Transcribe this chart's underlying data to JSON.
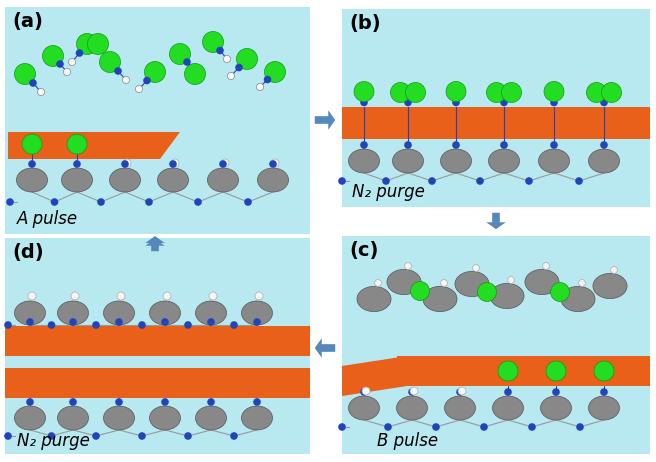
{
  "bg": "#ffffff",
  "light_blue": "#b8e8f0",
  "orange": "#e8601a",
  "green": "#22dd22",
  "gray_atom": "#888888",
  "gray_dark": "#555555",
  "blue_dot": "#2244bb",
  "white_dot": "#f5f5f5",
  "arrow_color": "#5588bb",
  "panel_labels": [
    "(a)",
    "(b)",
    "(c)",
    "(d)"
  ],
  "panel_texts": [
    "A pulse",
    "N₂ purge",
    "B pulse",
    "N₂ purge"
  ]
}
